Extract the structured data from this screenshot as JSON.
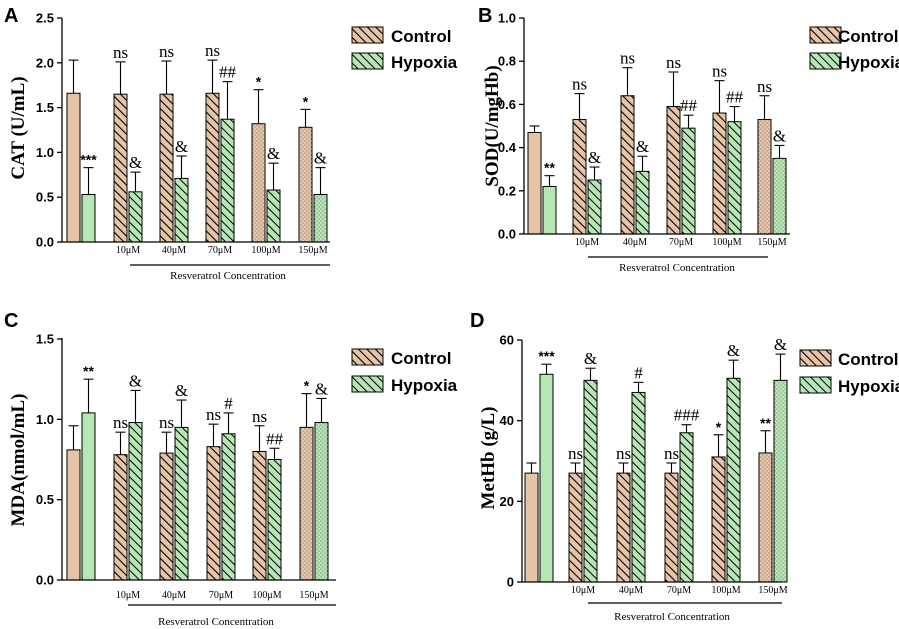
{
  "colors": {
    "control": "#e6c4a8",
    "hypoxia": "#b7e6b5",
    "ink": "#000000"
  },
  "legend": {
    "control": "Control",
    "hypoxia": "Hypoxia"
  },
  "chart_data": [
    {
      "panel": "A",
      "type": "bar",
      "ylabel": "CAT (U/mL)",
      "ylim": [
        0,
        2.5
      ],
      "yticks": [
        "0.0",
        "0.5",
        "1.0",
        "1.5",
        "2.0",
        "2.5"
      ],
      "categories": [
        "",
        "10μM",
        "40μM",
        "70μM",
        "100μM",
        "150μM"
      ],
      "group_label": "Resveratrol Concentration",
      "series": [
        {
          "name": "Control",
          "values": [
            1.66,
            1.65,
            1.65,
            1.66,
            1.32,
            1.28
          ],
          "errors": [
            0.37,
            0.36,
            0.37,
            0.37,
            0.38,
            0.2
          ],
          "patterns": [
            "solid",
            "diag",
            "diag",
            "diag",
            "dots",
            "dots"
          ],
          "labels": [
            "",
            "ns",
            "ns",
            "ns",
            "*",
            "*"
          ]
        },
        {
          "name": "Hypoxia",
          "values": [
            0.53,
            0.56,
            0.71,
            1.37,
            0.58,
            0.53
          ],
          "errors": [
            0.3,
            0.22,
            0.25,
            0.42,
            0.3,
            0.3
          ],
          "patterns": [
            "solid",
            "diag",
            "diag",
            "diag",
            "diag",
            "dots"
          ],
          "labels": [
            "***",
            "&",
            "&",
            "##",
            "&",
            "&"
          ]
        }
      ]
    },
    {
      "panel": "B",
      "type": "bar",
      "ylabel": "SOD(U/mgHb)",
      "ylim": [
        0,
        1.0
      ],
      "yticks": [
        "0.0",
        "0.2",
        "0.4",
        "0.6",
        "0.8",
        "1.0"
      ],
      "categories": [
        "",
        "10μM",
        "40μM",
        "70μM",
        "100μM",
        "150μM"
      ],
      "group_label": "Resveratrol Concentration",
      "series": [
        {
          "name": "Control",
          "values": [
            0.47,
            0.53,
            0.64,
            0.59,
            0.56,
            0.53
          ],
          "errors": [
            0.03,
            0.12,
            0.13,
            0.16,
            0.15,
            0.11
          ],
          "patterns": [
            "solid",
            "diag",
            "diag",
            "diag",
            "diag",
            "dots"
          ],
          "labels": [
            "",
            "ns",
            "ns",
            "ns",
            "ns",
            "ns"
          ]
        },
        {
          "name": "Hypoxia",
          "values": [
            0.22,
            0.25,
            0.29,
            0.49,
            0.52,
            0.35
          ],
          "errors": [
            0.05,
            0.06,
            0.07,
            0.06,
            0.07,
            0.06
          ],
          "patterns": [
            "solid",
            "diag",
            "diag",
            "diag",
            "diag",
            "dots"
          ],
          "labels": [
            "**",
            "&",
            "&",
            "##",
            "##",
            "&"
          ]
        }
      ]
    },
    {
      "panel": "C",
      "type": "bar",
      "ylabel": "MDA(nmol/mL)",
      "ylim": [
        0,
        1.5
      ],
      "yticks": [
        "0.0",
        "0.5",
        "1.0",
        "1.5"
      ],
      "categories": [
        "",
        "10μM",
        "40μM",
        "70μM",
        "100μM",
        "150μM"
      ],
      "group_label": "Resveratrol Concentration",
      "series": [
        {
          "name": "Control",
          "values": [
            0.81,
            0.78,
            0.79,
            0.83,
            0.8,
            0.95
          ],
          "errors": [
            0.15,
            0.14,
            0.13,
            0.14,
            0.16,
            0.21
          ],
          "patterns": [
            "solid",
            "diag",
            "diag",
            "diag",
            "diag",
            "dots"
          ],
          "labels": [
            "",
            "ns",
            "ns",
            "ns",
            "ns",
            "*"
          ]
        },
        {
          "name": "Hypoxia",
          "values": [
            1.04,
            0.98,
            0.95,
            0.91,
            0.75,
            0.98
          ],
          "errors": [
            0.21,
            0.2,
            0.17,
            0.13,
            0.07,
            0.15
          ],
          "patterns": [
            "solid",
            "diag",
            "diag",
            "diag",
            "diag",
            "dots"
          ],
          "labels": [
            "**",
            "&",
            "&",
            "#",
            "##",
            "&"
          ]
        }
      ]
    },
    {
      "panel": "D",
      "type": "bar",
      "ylabel": "MetHb (g/L)",
      "ylim": [
        0,
        60
      ],
      "yticks": [
        "0",
        "20",
        "40",
        "60"
      ],
      "categories": [
        "",
        "10μM",
        "40μM",
        "70μM",
        "100μM",
        "150μM"
      ],
      "group_label": "Resveratrol Concentration",
      "series": [
        {
          "name": "Control",
          "values": [
            27,
            27,
            27,
            27,
            31,
            32
          ],
          "errors": [
            2.5,
            2.5,
            2.5,
            2.5,
            5.5,
            5.5
          ],
          "patterns": [
            "solid",
            "diag",
            "diag",
            "diag",
            "diag",
            "dots"
          ],
          "labels": [
            "",
            "ns",
            "ns",
            "ns",
            "*",
            "**"
          ]
        },
        {
          "name": "Hypoxia",
          "values": [
            51.5,
            50,
            47,
            37,
            50.5,
            50
          ],
          "errors": [
            2.5,
            3,
            2.5,
            2,
            4.5,
            6.5
          ],
          "patterns": [
            "solid",
            "diag",
            "diag",
            "diag",
            "diag",
            "dots"
          ],
          "labels": [
            "***",
            "&",
            "#",
            "###",
            "&",
            "&"
          ]
        }
      ]
    }
  ]
}
